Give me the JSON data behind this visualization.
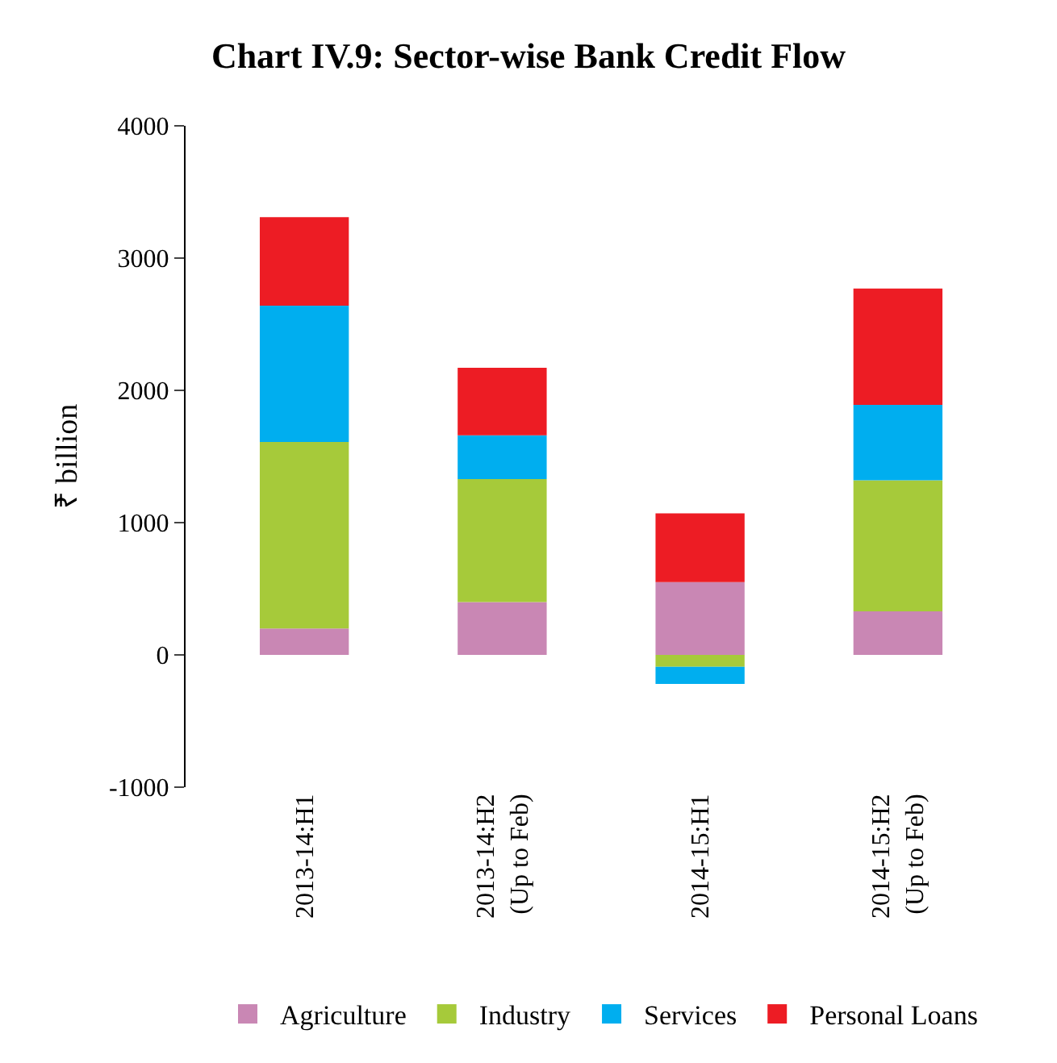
{
  "chart_data": {
    "type": "bar",
    "title": "Chart IV.9: Sector-wise Bank Credit Flow",
    "ylabel": "₹ billion",
    "categories": [
      "2013-14:H1",
      "2013-14:H2\n(Up to Feb)",
      "2014-15:H1",
      "2014-15:H2\n(Up to Feb)"
    ],
    "stacked": true,
    "ylim": [
      -1000,
      4000
    ],
    "yticks": [
      -1000,
      0,
      1000,
      2000,
      3000,
      4000
    ],
    "grid": false,
    "legend": "bottom",
    "series": [
      {
        "name": "Agriculture",
        "color": "#c987b4",
        "values": [
          200,
          400,
          550,
          330
        ]
      },
      {
        "name": "Industry",
        "color": "#a6ca3a",
        "values": [
          1410,
          930,
          -90,
          990
        ]
      },
      {
        "name": "Services",
        "color": "#00aeef",
        "values": [
          1030,
          330,
          -130,
          570
        ]
      },
      {
        "name": "Personal Loans",
        "color": "#ed1c24",
        "values": [
          670,
          510,
          520,
          880
        ]
      }
    ]
  }
}
